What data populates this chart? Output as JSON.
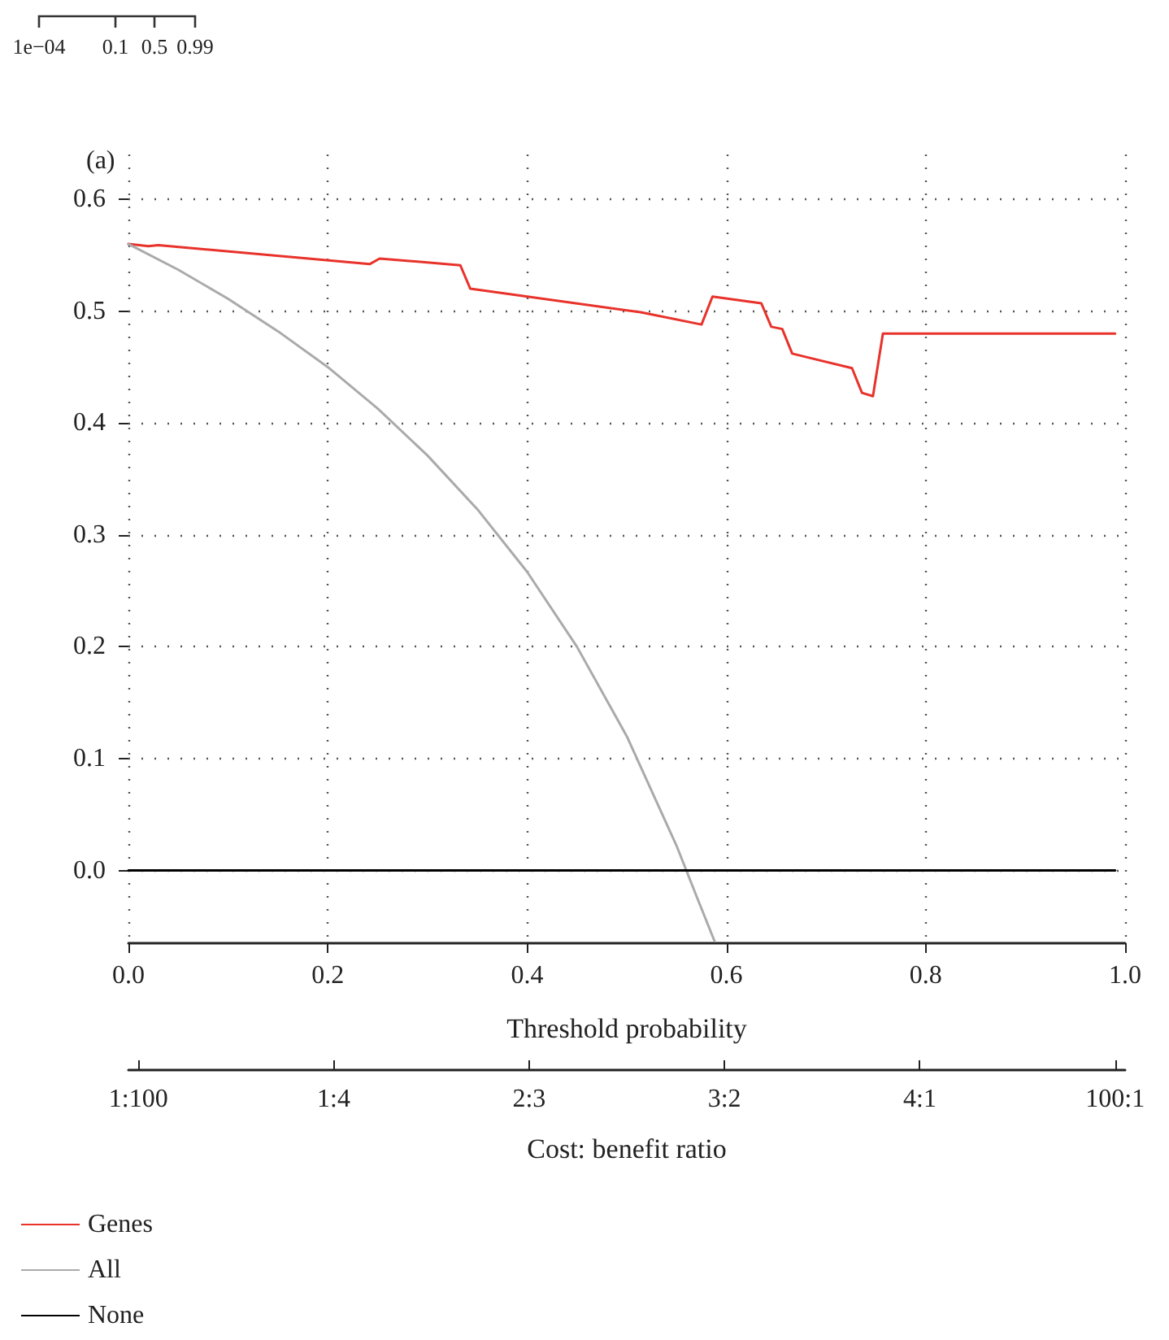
{
  "chart_data": {
    "type": "line",
    "title": "(a)",
    "xlabel": "Threshold probability",
    "x2label": "Cost: benefit ratio",
    "annotations": [
      "1e−04",
      "0.1",
      "0.5",
      "0.99",
      "1:100",
      "1:4",
      "2:3",
      "3:2",
      "4:1",
      "100:1"
    ],
    "xlim": [
      0,
      1
    ],
    "xticks": [
      {
        "value": 0,
        "label": "0.0"
      },
      {
        "value": 0.2,
        "label": "0.2"
      },
      {
        "value": 0.4,
        "label": "0.4"
      },
      {
        "value": 0.6,
        "label": "0.6"
      },
      {
        "value": 0.8,
        "label": "0.8"
      },
      {
        "value": 1,
        "label": "1.0"
      }
    ],
    "ylim": [
      -0.065,
      0.64
    ],
    "yticks": [
      {
        "value": 0,
        "label": "0.0"
      },
      {
        "value": 0.1,
        "label": "0.1"
      },
      {
        "value": 0.2,
        "label": "0.2"
      },
      {
        "value": 0.3,
        "label": "0.3"
      },
      {
        "value": 0.4,
        "label": "0.4"
      },
      {
        "value": 0.5,
        "label": "0.5"
      },
      {
        "value": 0.6,
        "label": "0.6"
      }
    ],
    "grid": true,
    "legend": "bottom left",
    "marker": "none",
    "line_style": "solid",
    "series": [
      {
        "name": "Genes",
        "color": "#e8322a",
        "x": [
          0,
          0.02,
          0.03,
          0.242,
          0.252,
          0.333,
          0.343,
          0.514,
          0.575,
          0.586,
          0.635,
          0.645,
          0.656,
          0.666,
          0.726,
          0.736,
          0.747,
          0.757,
          0.99
        ],
        "values": [
          0.56,
          0.558,
          0.559,
          0.542,
          0.547,
          0.541,
          0.52,
          0.499,
          0.488,
          0.513,
          0.507,
          0.486,
          0.484,
          0.462,
          0.449,
          0.427,
          0.424,
          0.48,
          0.48
        ]
      },
      {
        "name": "All",
        "color": "#aaaaaa",
        "x": [
          0,
          0.05,
          0.1,
          0.15,
          0.2,
          0.25,
          0.3,
          0.35,
          0.4,
          0.45,
          0.5,
          0.55,
          0.57,
          0.588
        ],
        "values": [
          0.56,
          0.537,
          0.511,
          0.482,
          0.45,
          0.413,
          0.371,
          0.323,
          0.267,
          0.2,
          0.12,
          0.022,
          -0.023,
          -0.063
        ]
      },
      {
        "name": "None",
        "color": "#000000",
        "x": [
          0,
          0.99
        ],
        "values": [
          0,
          0
        ]
      }
    ]
  }
}
